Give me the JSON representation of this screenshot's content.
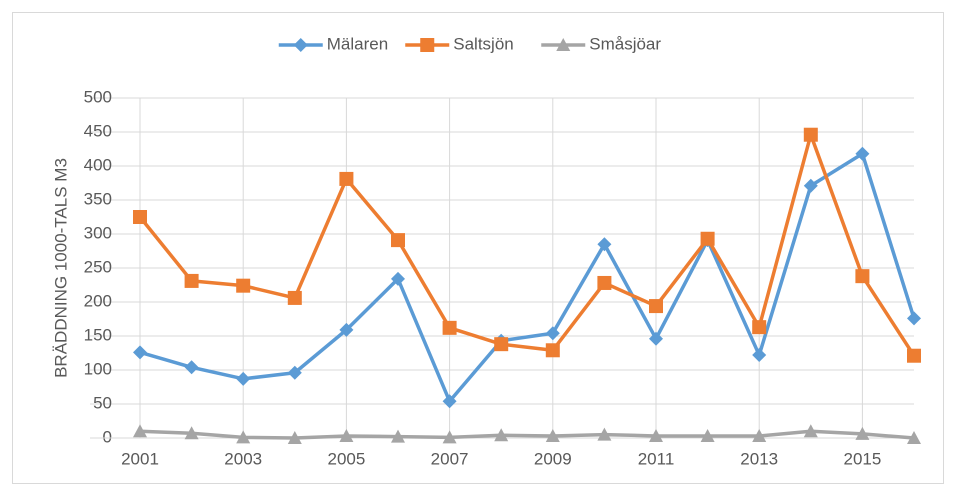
{
  "chart_data": {
    "type": "line",
    "y_label": "BRÄDDNING 1000-TALS M3",
    "x": [
      2001,
      2002,
      2003,
      2004,
      2005,
      2006,
      2007,
      2008,
      2009,
      2010,
      2011,
      2012,
      2013,
      2014,
      2015,
      2016
    ],
    "xlim": [
      2001,
      2016
    ],
    "xticks": [
      2001,
      2003,
      2005,
      2007,
      2009,
      2011,
      2013,
      2015
    ],
    "ylim": [
      0,
      500
    ],
    "yticks": [
      0,
      50,
      100,
      150,
      200,
      250,
      300,
      350,
      400,
      450,
      500
    ],
    "grid": true,
    "legend": "top",
    "series": [
      {
        "name": "Mälaren",
        "color": "#5b9bd5",
        "marker": "diamond",
        "values": [
          126,
          104,
          87,
          96,
          159,
          234,
          54,
          143,
          154,
          285,
          146,
          291,
          122,
          371,
          418,
          176
        ]
      },
      {
        "name": "Saltsjön",
        "color": "#ed7d31",
        "marker": "square",
        "values": [
          325,
          231,
          224,
          206,
          381,
          291,
          162,
          138,
          129,
          228,
          194,
          293,
          163,
          446,
          238,
          121
        ]
      },
      {
        "name": "Småsjöar",
        "color": "#a5a5a5",
        "marker": "triangle",
        "values": [
          10,
          7,
          1,
          0,
          3,
          2,
          1,
          4,
          3,
          5,
          3,
          3,
          3,
          10,
          6,
          0
        ]
      }
    ]
  }
}
